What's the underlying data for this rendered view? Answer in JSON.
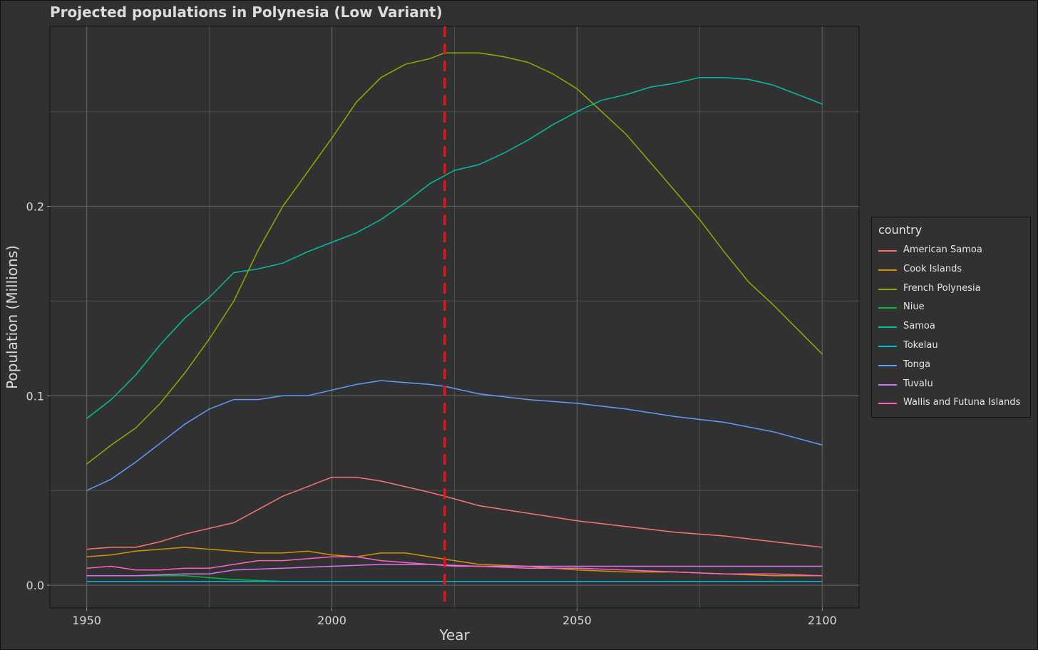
{
  "chart_data": {
    "type": "line",
    "title": "Projected populations in Polynesia (Low Variant)",
    "xlabel": "Year",
    "ylabel": "Population (Millions)",
    "xlim": [
      1942.5,
      2107.5
    ],
    "ylim": [
      -0.012,
      0.295
    ],
    "xticks": [
      1950,
      2000,
      2050,
      2100
    ],
    "xtick_labels": [
      "1950",
      "2000",
      "2050",
      "2100"
    ],
    "yticks": [
      0.0,
      0.1,
      0.2
    ],
    "ytick_labels": [
      "0.0",
      "0.1",
      "0.2"
    ],
    "grid": true,
    "legend_position": "right",
    "legend_title": "country",
    "reference_line": {
      "x": 2023,
      "color": "#e3141c",
      "style": "dashed"
    },
    "series": [
      {
        "name": "American Samoa",
        "color": "#f8766d",
        "points": [
          [
            1950,
            0.019
          ],
          [
            1955,
            0.02
          ],
          [
            1960,
            0.02
          ],
          [
            1965,
            0.023
          ],
          [
            1970,
            0.027
          ],
          [
            1975,
            0.03
          ],
          [
            1980,
            0.033
          ],
          [
            1985,
            0.04
          ],
          [
            1990,
            0.047
          ],
          [
            1995,
            0.052
          ],
          [
            2000,
            0.057
          ],
          [
            2005,
            0.057
          ],
          [
            2010,
            0.055
          ],
          [
            2015,
            0.052
          ],
          [
            2020,
            0.049
          ],
          [
            2023,
            0.047
          ],
          [
            2030,
            0.042
          ],
          [
            2040,
            0.038
          ],
          [
            2050,
            0.034
          ],
          [
            2060,
            0.031
          ],
          [
            2070,
            0.028
          ],
          [
            2080,
            0.026
          ],
          [
            2090,
            0.023
          ],
          [
            2100,
            0.02
          ]
        ]
      },
      {
        "name": "Cook Islands",
        "color": "#d39200",
        "points": [
          [
            1950,
            0.015
          ],
          [
            1955,
            0.016
          ],
          [
            1960,
            0.018
          ],
          [
            1965,
            0.019
          ],
          [
            1970,
            0.02
          ],
          [
            1975,
            0.019
          ],
          [
            1980,
            0.018
          ],
          [
            1985,
            0.017
          ],
          [
            1990,
            0.017
          ],
          [
            1995,
            0.018
          ],
          [
            2000,
            0.016
          ],
          [
            2005,
            0.015
          ],
          [
            2010,
            0.017
          ],
          [
            2015,
            0.017
          ],
          [
            2020,
            0.015
          ],
          [
            2025,
            0.013
          ],
          [
            2030,
            0.011
          ],
          [
            2040,
            0.01
          ],
          [
            2050,
            0.008
          ],
          [
            2060,
            0.007
          ],
          [
            2070,
            0.007
          ],
          [
            2080,
            0.006
          ],
          [
            2090,
            0.005
          ],
          [
            2100,
            0.005
          ]
        ]
      },
      {
        "name": "French Polynesia",
        "color": "#93aa00",
        "points": [
          [
            1950,
            0.064
          ],
          [
            1955,
            0.074
          ],
          [
            1960,
            0.083
          ],
          [
            1965,
            0.096
          ],
          [
            1970,
            0.112
          ],
          [
            1975,
            0.13
          ],
          [
            1980,
            0.15
          ],
          [
            1985,
            0.177
          ],
          [
            1990,
            0.2
          ],
          [
            1995,
            0.218
          ],
          [
            2000,
            0.236
          ],
          [
            2005,
            0.255
          ],
          [
            2010,
            0.268
          ],
          [
            2015,
            0.275
          ],
          [
            2020,
            0.278
          ],
          [
            2023,
            0.281
          ],
          [
            2030,
            0.281
          ],
          [
            2035,
            0.279
          ],
          [
            2040,
            0.276
          ],
          [
            2045,
            0.27
          ],
          [
            2050,
            0.262
          ],
          [
            2055,
            0.25
          ],
          [
            2060,
            0.238
          ],
          [
            2065,
            0.223
          ],
          [
            2070,
            0.208
          ],
          [
            2075,
            0.193
          ],
          [
            2080,
            0.176
          ],
          [
            2085,
            0.16
          ],
          [
            2090,
            0.148
          ],
          [
            2095,
            0.135
          ],
          [
            2100,
            0.122
          ]
        ]
      },
      {
        "name": "Niue",
        "color": "#00ba38",
        "points": [
          [
            1950,
            0.005
          ],
          [
            1960,
            0.005
          ],
          [
            1970,
            0.005
          ],
          [
            1975,
            0.004
          ],
          [
            1980,
            0.003
          ],
          [
            1990,
            0.002
          ],
          [
            2000,
            0.002
          ],
          [
            2010,
            0.002
          ],
          [
            2023,
            0.002
          ],
          [
            2030,
            0.002
          ],
          [
            2050,
            0.002
          ],
          [
            2070,
            0.002
          ],
          [
            2100,
            0.002
          ]
        ]
      },
      {
        "name": "Samoa",
        "color": "#00c19f",
        "points": [
          [
            1950,
            0.088
          ],
          [
            1955,
            0.098
          ],
          [
            1960,
            0.111
          ],
          [
            1965,
            0.127
          ],
          [
            1970,
            0.141
          ],
          [
            1975,
            0.152
          ],
          [
            1980,
            0.165
          ],
          [
            1985,
            0.167
          ],
          [
            1990,
            0.17
          ],
          [
            1995,
            0.176
          ],
          [
            2000,
            0.181
          ],
          [
            2005,
            0.186
          ],
          [
            2010,
            0.193
          ],
          [
            2015,
            0.202
          ],
          [
            2020,
            0.212
          ],
          [
            2025,
            0.219
          ],
          [
            2030,
            0.222
          ],
          [
            2035,
            0.228
          ],
          [
            2040,
            0.235
          ],
          [
            2045,
            0.243
          ],
          [
            2050,
            0.25
          ],
          [
            2055,
            0.256
          ],
          [
            2060,
            0.259
          ],
          [
            2065,
            0.263
          ],
          [
            2070,
            0.265
          ],
          [
            2075,
            0.268
          ],
          [
            2080,
            0.268
          ],
          [
            2085,
            0.267
          ],
          [
            2090,
            0.264
          ],
          [
            2095,
            0.259
          ],
          [
            2100,
            0.254
          ]
        ]
      },
      {
        "name": "Tokelau",
        "color": "#00b9e3",
        "points": [
          [
            1950,
            0.002
          ],
          [
            1975,
            0.002
          ],
          [
            2000,
            0.002
          ],
          [
            2023,
            0.002
          ],
          [
            2050,
            0.002
          ],
          [
            2075,
            0.002
          ],
          [
            2100,
            0.002
          ]
        ]
      },
      {
        "name": "Tonga",
        "color": "#619cff",
        "points": [
          [
            1950,
            0.05
          ],
          [
            1955,
            0.056
          ],
          [
            1960,
            0.065
          ],
          [
            1965,
            0.075
          ],
          [
            1970,
            0.085
          ],
          [
            1975,
            0.093
          ],
          [
            1980,
            0.098
          ],
          [
            1985,
            0.098
          ],
          [
            1990,
            0.1
          ],
          [
            1995,
            0.1
          ],
          [
            2000,
            0.103
          ],
          [
            2005,
            0.106
          ],
          [
            2010,
            0.108
          ],
          [
            2015,
            0.107
          ],
          [
            2020,
            0.106
          ],
          [
            2023,
            0.105
          ],
          [
            2030,
            0.101
          ],
          [
            2040,
            0.098
          ],
          [
            2050,
            0.096
          ],
          [
            2060,
            0.093
          ],
          [
            2070,
            0.089
          ],
          [
            2080,
            0.086
          ],
          [
            2090,
            0.081
          ],
          [
            2100,
            0.074
          ]
        ]
      },
      {
        "name": "Tuvalu",
        "color": "#db72fb",
        "points": [
          [
            1950,
            0.005
          ],
          [
            1960,
            0.005
          ],
          [
            1970,
            0.006
          ],
          [
            1975,
            0.006
          ],
          [
            1980,
            0.008
          ],
          [
            1990,
            0.009
          ],
          [
            2000,
            0.01
          ],
          [
            2010,
            0.011
          ],
          [
            2020,
            0.011
          ],
          [
            2030,
            0.01
          ],
          [
            2040,
            0.01
          ],
          [
            2050,
            0.01
          ],
          [
            2060,
            0.01
          ],
          [
            2070,
            0.01
          ],
          [
            2080,
            0.01
          ],
          [
            2090,
            0.01
          ],
          [
            2100,
            0.01
          ]
        ]
      },
      {
        "name": "Wallis and Futuna Islands",
        "color": "#ff61c3",
        "points": [
          [
            1950,
            0.009
          ],
          [
            1955,
            0.01
          ],
          [
            1960,
            0.008
          ],
          [
            1965,
            0.008
          ],
          [
            1970,
            0.009
          ],
          [
            1975,
            0.009
          ],
          [
            1980,
            0.011
          ],
          [
            1985,
            0.013
          ],
          [
            1990,
            0.013
          ],
          [
            1995,
            0.014
          ],
          [
            2000,
            0.015
          ],
          [
            2005,
            0.015
          ],
          [
            2010,
            0.013
          ],
          [
            2015,
            0.012
          ],
          [
            2020,
            0.011
          ],
          [
            2025,
            0.01
          ],
          [
            2030,
            0.01
          ],
          [
            2040,
            0.009
          ],
          [
            2050,
            0.009
          ],
          [
            2060,
            0.008
          ],
          [
            2070,
            0.007
          ],
          [
            2080,
            0.006
          ],
          [
            2090,
            0.006
          ],
          [
            2100,
            0.005
          ]
        ]
      }
    ]
  }
}
